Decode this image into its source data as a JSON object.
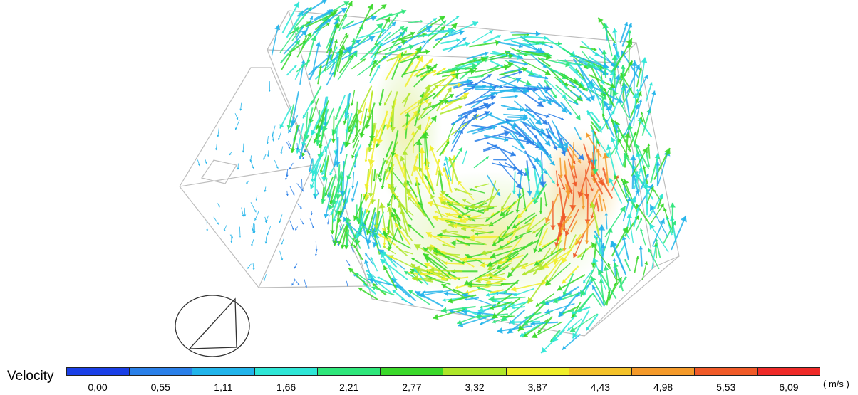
{
  "legend": {
    "title": "Velocity",
    "unit": "( m/s )",
    "ticks": [
      "0,00",
      "0,55",
      "1,11",
      "1,66",
      "2,21",
      "2,77",
      "3,32",
      "3,87",
      "4,43",
      "4,98",
      "5,53",
      "6,09"
    ],
    "colors": [
      "#1a3fe6",
      "#2a7fe8",
      "#22b4ea",
      "#2ee6d6",
      "#2ee67a",
      "#3ad82a",
      "#aee62a",
      "#f0ee2a",
      "#f4c22a",
      "#f49a2a",
      "#f05a28",
      "#ee2a28"
    ]
  }
}
